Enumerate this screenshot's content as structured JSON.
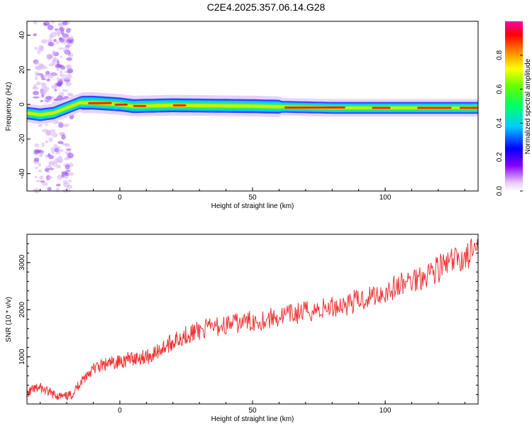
{
  "title": "C2E4.2025.357.06.14.G28",
  "chart_data": [
    {
      "type": "heatmap",
      "xlabel": "Height of straight line (km)",
      "ylabel": "Frequency (Hz)",
      "xlim": [
        -35,
        135
      ],
      "ylim": [
        -50,
        48
      ],
      "xticks": [
        0,
        50,
        100
      ],
      "yticks": [
        -40,
        -20,
        0,
        20,
        40
      ],
      "ridge": [
        {
          "x": -35,
          "f": -5
        },
        {
          "x": -30,
          "f": -6
        },
        {
          "x": -25,
          "f": -5
        },
        {
          "x": -20,
          "f": -2
        },
        {
          "x": -15,
          "f": 1
        },
        {
          "x": -10,
          "f": 1
        },
        {
          "x": 0,
          "f": 0
        },
        {
          "x": 5,
          "f": -1
        },
        {
          "x": 20,
          "f": -0.5
        },
        {
          "x": 50,
          "f": -1
        },
        {
          "x": 80,
          "f": -2
        },
        {
          "x": 100,
          "f": -2
        },
        {
          "x": 135,
          "f": -2
        }
      ],
      "colorbar": {
        "label": "Normalized spectral amplitude",
        "ticks": [
          "0.0",
          "0.2",
          "0.4",
          "0.6",
          "0.8"
        ],
        "range": [
          0,
          1
        ]
      }
    },
    {
      "type": "line",
      "xlabel": "Height of straight line (km)",
      "ylabel": "SNR (10 * v/v)",
      "xlim": [
        -35,
        135
      ],
      "ylim": [
        0,
        3600
      ],
      "xticks": [
        0,
        50,
        100
      ],
      "yticks": [
        1000,
        2000,
        3000
      ],
      "color": "#ee3333",
      "series": [
        {
          "x": [
            -35,
            -33,
            -30,
            -27,
            -24,
            -21,
            -18,
            -15,
            -12,
            -9,
            -6,
            -3,
            0,
            3,
            6,
            9,
            12,
            15,
            18,
            21,
            24,
            27,
            30,
            35,
            40,
            45,
            50,
            55,
            60,
            65,
            70,
            75,
            80,
            85,
            90,
            95,
            100,
            105,
            110,
            115,
            120,
            125,
            130,
            135
          ],
          "values": [
            200,
            300,
            350,
            250,
            180,
            150,
            200,
            450,
            650,
            780,
            820,
            870,
            900,
            950,
            980,
            1000,
            1020,
            1150,
            1250,
            1350,
            1450,
            1500,
            1560,
            1620,
            1680,
            1720,
            1760,
            1800,
            1850,
            1900,
            1960,
            2000,
            2060,
            2120,
            2200,
            2300,
            2380,
            2500,
            2620,
            2760,
            2880,
            3000,
            3120,
            3280
          ]
        }
      ]
    }
  ]
}
